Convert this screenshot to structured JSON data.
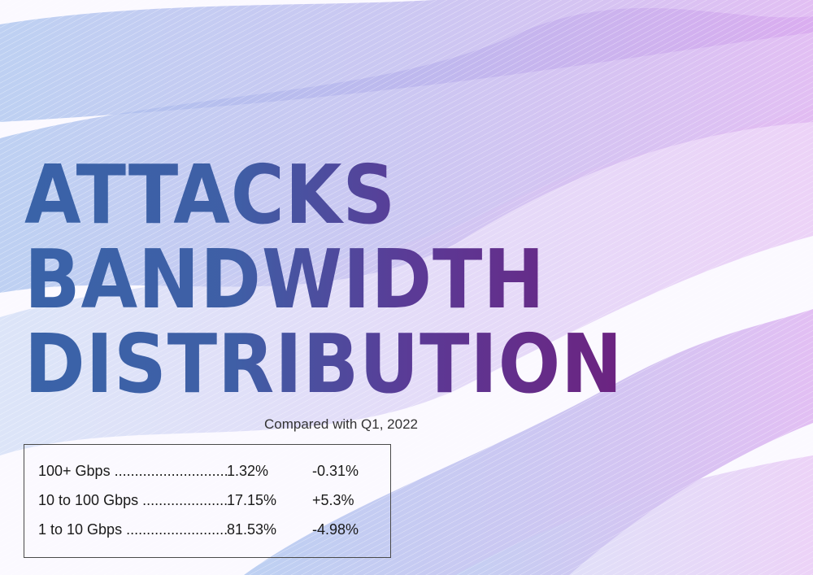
{
  "chart_data": {
    "type": "table",
    "title_lines": [
      "ATTACKS",
      "BANDWIDTH",
      "DISTRIBUTION"
    ],
    "subtitle": "Compared with Q1, 2022",
    "rows": [
      {
        "label": "100+ Gbps",
        "share": "1.32%",
        "change": "-0.31%"
      },
      {
        "label": "10 to 100 Gbps",
        "share": "17.15%",
        "change": "+5.3%"
      },
      {
        "label": "1 to 10 Gbps",
        "share": "81.53%",
        "change": "-4.98%"
      }
    ]
  },
  "colors": {
    "title_start": "#3a63a8",
    "title_end": "#6c2380",
    "band_blue": "#8fb0e6",
    "band_purple": "#c79be6"
  }
}
